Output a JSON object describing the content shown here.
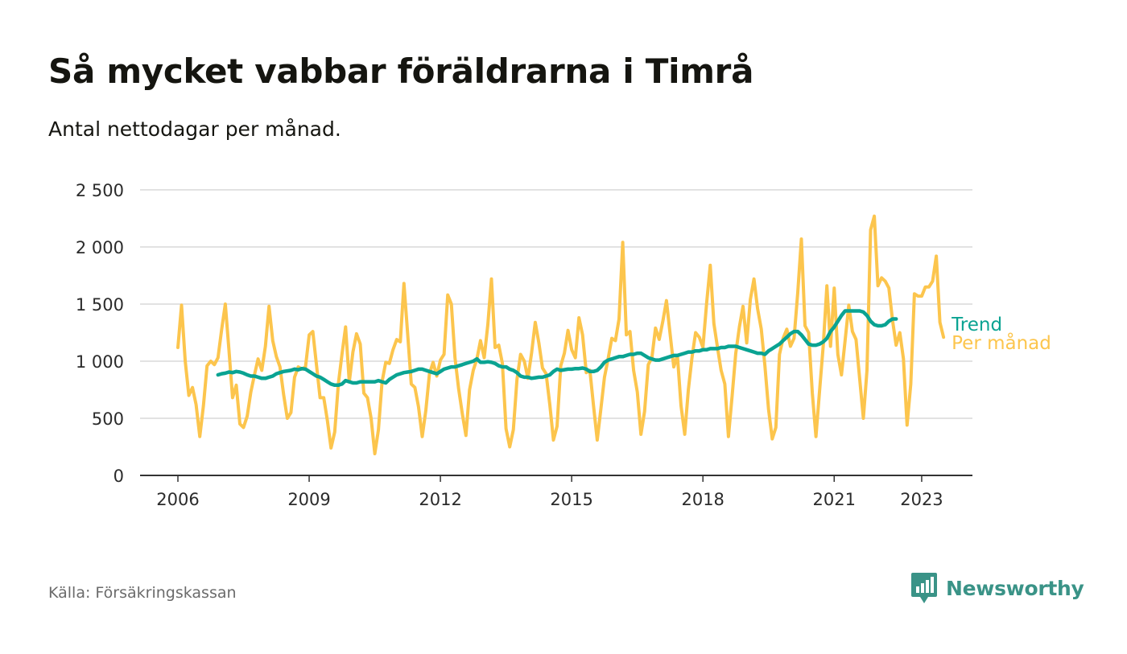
{
  "header": {
    "title": "Så mycket vabbar föräldrarna i Timrå",
    "subtitle": "Antal nettodagar per månad."
  },
  "footer": {
    "source": "Källa: Försäkringskassan",
    "brand": "Newsworthy"
  },
  "colors": {
    "per_month": "#fcc54d",
    "trend": "#0aa392",
    "grid": "#d9d9d9",
    "axis": "#333333",
    "brand": "#3a9387"
  },
  "icons": {
    "logo": "bar-chart-bubble-icon"
  },
  "chart_data": {
    "type": "line",
    "title": "Så mycket vabbar föräldrarna i Timrå",
    "subtitle": "Antal nettodagar per månad.",
    "xlabel": "",
    "ylabel": "",
    "x_range": [
      2006,
      2023.5
    ],
    "ylim": [
      0,
      2500
    ],
    "y_ticks": [
      0,
      500,
      1000,
      1500,
      2000,
      2500
    ],
    "y_tick_labels": [
      "0",
      "500",
      "1 000",
      "1 500",
      "2 000",
      "2 500"
    ],
    "x_ticks": [
      2006,
      2009,
      2012,
      2015,
      2018,
      2021,
      2023
    ],
    "x_tick_labels": [
      "2006",
      "2009",
      "2012",
      "2015",
      "2018",
      "2021",
      "2023"
    ],
    "grid": true,
    "legend": "right-end labels",
    "series": [
      {
        "name": "Per månad",
        "start_year": 2006,
        "values": [
          1120,
          1490,
          1000,
          700,
          770,
          620,
          340,
          610,
          960,
          1000,
          970,
          1030,
          1280,
          1500,
          1100,
          680,
          790,
          450,
          420,
          520,
          730,
          880,
          1020,
          920,
          1130,
          1480,
          1180,
          1040,
          950,
          710,
          500,
          550,
          860,
          950,
          930,
          950,
          1230,
          1260,
          970,
          680,
          680,
          480,
          240,
          380,
          800,
          1060,
          1300,
          820,
          1080,
          1240,
          1150,
          720,
          680,
          500,
          190,
          400,
          820,
          990,
          980,
          1100,
          1190,
          1170,
          1680,
          1250,
          800,
          770,
          600,
          340,
          570,
          890,
          990,
          870,
          1010,
          1060,
          1580,
          1500,
          1030,
          760,
          540,
          350,
          750,
          920,
          1020,
          1180,
          1030,
          1320,
          1720,
          1120,
          1140,
          980,
          410,
          250,
          400,
          840,
          1060,
          1000,
          850,
          1070,
          1340,
          1160,
          940,
          890,
          620,
          310,
          430,
          960,
          1070,
          1270,
          1100,
          1030,
          1380,
          1230,
          900,
          920,
          610,
          310,
          580,
          860,
          1020,
          1200,
          1180,
          1370,
          2040,
          1230,
          1260,
          920,
          730,
          360,
          560,
          970,
          1030,
          1290,
          1190,
          1350,
          1530,
          1240,
          950,
          1050,
          610,
          360,
          750,
          1030,
          1250,
          1210,
          1120,
          1500,
          1840,
          1330,
          1120,
          920,
          800,
          340,
          690,
          1070,
          1300,
          1480,
          1160,
          1540,
          1720,
          1460,
          1280,
          960,
          580,
          320,
          420,
          1060,
          1200,
          1280,
          1130,
          1200,
          1600,
          2070,
          1310,
          1250,
          720,
          340,
          740,
          1140,
          1660,
          1130,
          1640,
          1060,
          880,
          1180,
          1490,
          1260,
          1190,
          840,
          500,
          920,
          2150,
          2270,
          1660,
          1730,
          1700,
          1640,
          1360,
          1140,
          1250,
          1020,
          440,
          800,
          1590,
          1570,
          1570,
          1650,
          1650,
          1700,
          1920,
          1340,
          1210
        ]
      },
      {
        "name": "Trend",
        "start_year": 2006.9167,
        "values": [
          880,
          890,
          895,
          905,
          900,
          910,
          905,
          895,
          880,
          870,
          870,
          860,
          850,
          850,
          860,
          870,
          890,
          900,
          910,
          915,
          920,
          930,
          925,
          935,
          930,
          910,
          890,
          870,
          860,
          840,
          820,
          800,
          790,
          790,
          800,
          830,
          820,
          810,
          810,
          820,
          820,
          820,
          820,
          820,
          830,
          820,
          810,
          840,
          860,
          880,
          890,
          900,
          905,
          910,
          920,
          930,
          930,
          920,
          910,
          900,
          890,
          910,
          930,
          940,
          950,
          950,
          960,
          970,
          980,
          990,
          1000,
          1020,
          990,
          990,
          995,
          990,
          980,
          960,
          950,
          950,
          930,
          920,
          900,
          870,
          860,
          860,
          850,
          855,
          860,
          860,
          870,
          880,
          910,
          930,
          920,
          925,
          930,
          930,
          935,
          935,
          940,
          930,
          910,
          910,
          920,
          950,
          990,
          1010,
          1020,
          1030,
          1040,
          1040,
          1050,
          1060,
          1060,
          1070,
          1070,
          1050,
          1030,
          1020,
          1010,
          1010,
          1020,
          1030,
          1040,
          1050,
          1050,
          1060,
          1070,
          1080,
          1080,
          1090,
          1090,
          1100,
          1100,
          1110,
          1110,
          1110,
          1120,
          1120,
          1130,
          1130,
          1130,
          1120,
          1110,
          1100,
          1090,
          1080,
          1070,
          1070,
          1060,
          1090,
          1110,
          1130,
          1150,
          1180,
          1210,
          1240,
          1260,
          1260,
          1230,
          1190,
          1150,
          1140,
          1140,
          1150,
          1170,
          1200,
          1260,
          1300,
          1350,
          1400,
          1440,
          1440,
          1440,
          1440,
          1440,
          1430,
          1400,
          1350,
          1320,
          1310,
          1310,
          1320,
          1350,
          1370,
          1370
        ]
      }
    ]
  }
}
